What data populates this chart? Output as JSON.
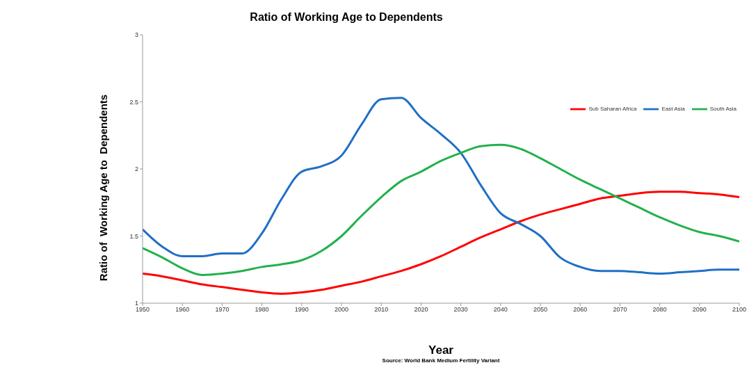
{
  "chart_data": {
    "type": "line",
    "title": "Ratio of Working Age to Dependents",
    "xlabel": "Year",
    "ylabel": "Ratio of  Working Age to  Dependents",
    "annotations": [
      "Source: World Bank Medium Fertility Variant"
    ],
    "x": [
      1950,
      1955,
      1960,
      1965,
      1970,
      1975,
      1980,
      1985,
      1990,
      1995,
      2000,
      2005,
      2010,
      2015,
      2020,
      2025,
      2030,
      2035,
      2040,
      2045,
      2050,
      2055,
      2060,
      2065,
      2070,
      2075,
      2080,
      2085,
      2090,
      2095,
      2100
    ],
    "series": [
      {
        "name": "Sub Saharan Africa",
        "color": "#ff0000",
        "values": [
          1.22,
          1.2,
          1.17,
          1.14,
          1.12,
          1.1,
          1.08,
          1.07,
          1.08,
          1.1,
          1.13,
          1.16,
          1.2,
          1.24,
          1.29,
          1.35,
          1.42,
          1.49,
          1.55,
          1.61,
          1.66,
          1.7,
          1.74,
          1.78,
          1.8,
          1.82,
          1.83,
          1.83,
          1.82,
          1.81,
          1.79
        ]
      },
      {
        "name": "East Asia",
        "color": "#1f6fc5",
        "values": [
          1.55,
          1.42,
          1.35,
          1.35,
          1.37,
          1.37,
          1.52,
          1.78,
          1.98,
          2.02,
          2.1,
          2.33,
          2.52,
          2.53,
          2.38,
          2.26,
          2.12,
          1.88,
          1.67,
          1.59,
          1.5,
          1.34,
          1.27,
          1.24,
          1.24,
          1.23,
          1.22,
          1.23,
          1.24,
          1.25,
          1.25
        ]
      },
      {
        "name": "South Asia",
        "color": "#22b14c",
        "values": [
          1.41,
          1.34,
          1.26,
          1.21,
          1.22,
          1.24,
          1.27,
          1.29,
          1.32,
          1.39,
          1.5,
          1.65,
          1.79,
          1.91,
          1.98,
          2.06,
          2.12,
          2.17,
          2.18,
          2.15,
          2.08,
          2.0,
          1.92,
          1.85,
          1.78,
          1.71,
          1.64,
          1.58,
          1.53,
          1.5,
          1.46
        ]
      }
    ],
    "xlim": [
      1950,
      2100
    ],
    "xticks": [
      1950,
      1960,
      1970,
      1980,
      1990,
      2000,
      2010,
      2020,
      2030,
      2040,
      2050,
      2060,
      2070,
      2080,
      2090,
      2100
    ],
    "ylim": [
      1,
      3
    ],
    "yticks": [
      1,
      1.5,
      2,
      2.5,
      3
    ],
    "grid": false,
    "legend": "top right",
    "marker": "none",
    "line_style": "solid"
  }
}
